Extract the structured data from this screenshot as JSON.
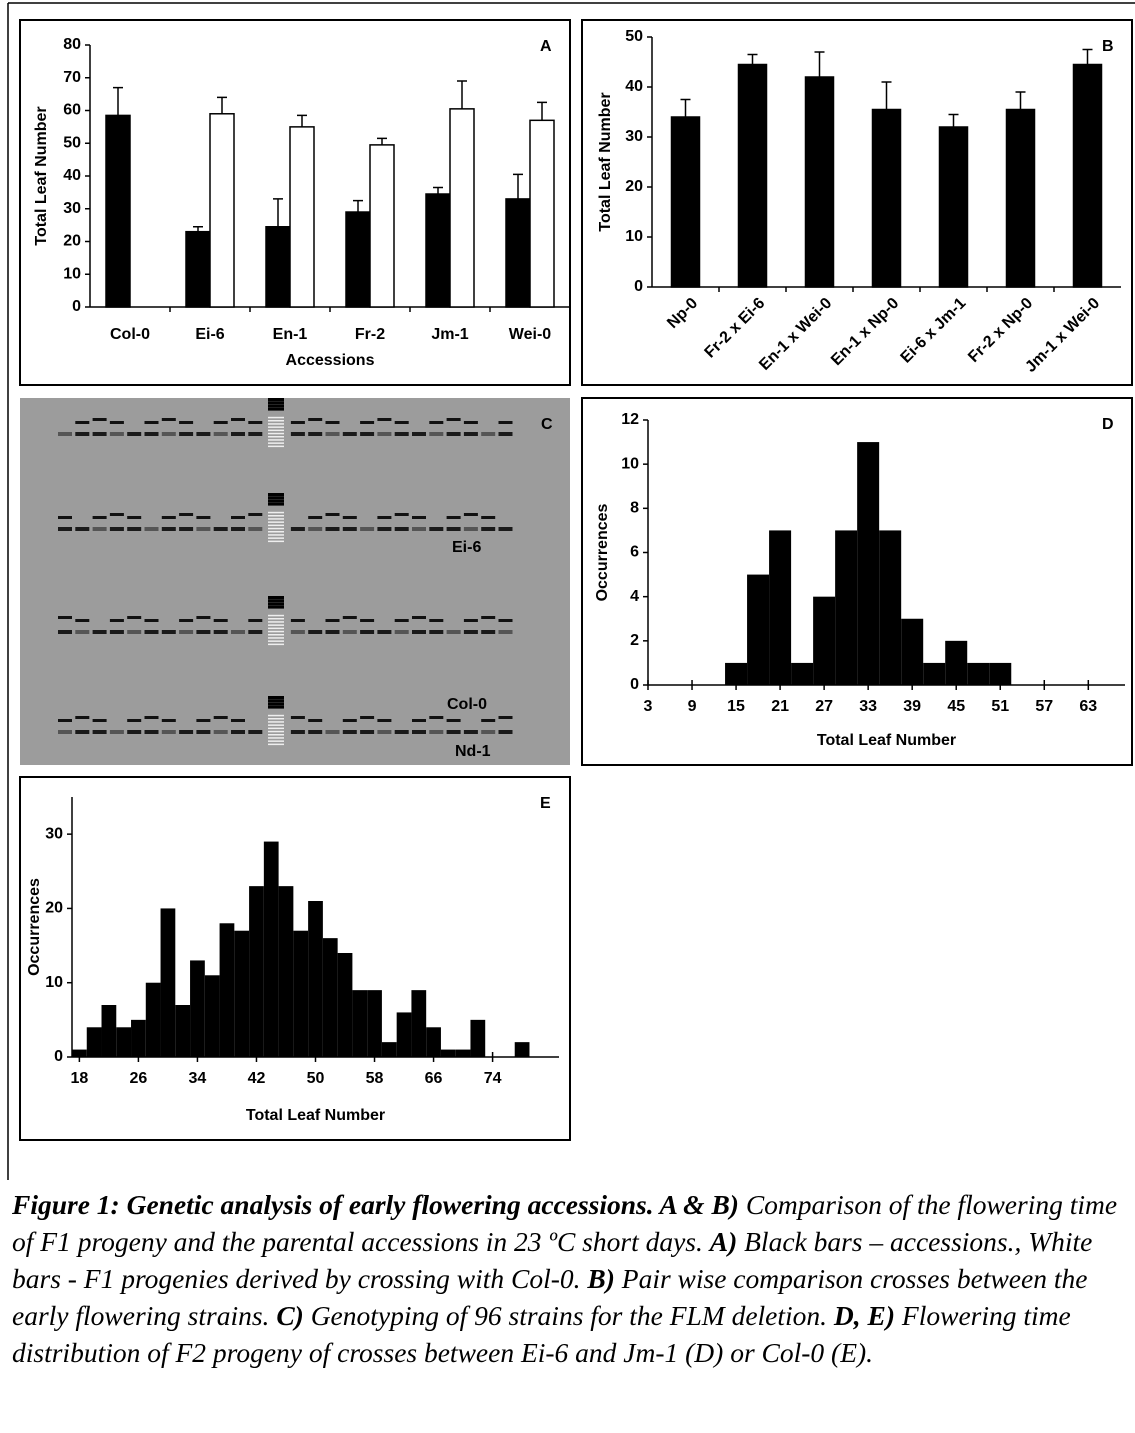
{
  "chart_data": [
    {
      "type": "bar",
      "panel": "A",
      "ylabel": "Total Leaf Number",
      "xlabel": "Accessions",
      "categories": [
        "Col-0",
        "Ei-6",
        "En-1",
        "Fr-2",
        "Jm-1",
        "Wei-0"
      ],
      "series": [
        {
          "color": "#000000",
          "values": [
            58.5,
            23,
            24.5,
            29,
            34.5,
            33
          ],
          "errors": [
            8.5,
            1.5,
            8.5,
            3.5,
            2,
            7.5
          ]
        },
        {
          "color": "#ffffff",
          "values": [
            null,
            59,
            55,
            49.5,
            60.5,
            57
          ],
          "errors": [
            null,
            5,
            3.5,
            2,
            8.5,
            5.5
          ]
        }
      ],
      "ylim": [
        0,
        80
      ],
      "yticks": [
        0,
        10,
        20,
        30,
        40,
        50,
        60,
        70,
        80
      ]
    },
    {
      "type": "bar",
      "panel": "B",
      "ylabel": "Total Leaf Number",
      "label_rotation": -45,
      "categories": [
        "Np-0",
        "Fr-2 x Ei-6",
        "En-1 x Wei-0",
        "En-1 x Np-0",
        "Ei-6 x Jm-1",
        "Fr-2 x Np-0",
        "Jm-1 x Wei-0"
      ],
      "series": [
        {
          "color": "#000000",
          "values": [
            34,
            44.5,
            42,
            35.5,
            32,
            35.5,
            44.5
          ],
          "errors": [
            3.5,
            2,
            5,
            5.5,
            2.5,
            3.5,
            3
          ]
        }
      ],
      "ylim": [
        0,
        50
      ],
      "yticks": [
        0,
        10,
        20,
        30,
        40,
        50
      ]
    },
    {
      "type": "histogram",
      "panel": "D",
      "ylabel": "Occurrences",
      "xlabel": "Total Leaf Number",
      "color": "#000000",
      "bins": [
        13.5,
        16.5,
        19.5,
        22.5,
        25.5,
        28.5,
        31.5,
        34.5,
        37.5,
        40.5,
        43.5,
        46.5,
        49.5,
        52.5
      ],
      "values": [
        1,
        5,
        7,
        1,
        4,
        7,
        11,
        7,
        3,
        1,
        2,
        1,
        1
      ],
      "xlim": [
        3,
        68
      ],
      "xticks": [
        3,
        9,
        15,
        21,
        27,
        33,
        39,
        45,
        51,
        57,
        63
      ],
      "ylim": [
        0,
        12
      ],
      "yticks": [
        0,
        2,
        4,
        6,
        8,
        10,
        12
      ]
    },
    {
      "type": "histogram",
      "panel": "E",
      "ylabel": "Occurrences",
      "xlabel": "Total Leaf Number",
      "color": "#000000",
      "bins": [
        17,
        19,
        21,
        23,
        25,
        27,
        29,
        31,
        33,
        35,
        37,
        39,
        41,
        43,
        45,
        47,
        49,
        51,
        53,
        55,
        57,
        59,
        61,
        63,
        65,
        67,
        69,
        71,
        73,
        75,
        77,
        79
      ],
      "values": [
        1,
        4,
        7,
        4,
        5,
        10,
        20,
        7,
        13,
        11,
        18,
        17,
        23,
        29,
        23,
        17,
        21,
        16,
        14,
        9,
        9,
        2,
        6,
        9,
        4,
        1,
        1,
        5,
        0,
        0,
        2
      ],
      "xlim": [
        17,
        83
      ],
      "xticks": [
        18,
        26,
        34,
        42,
        50,
        58,
        66,
        74
      ],
      "ylim": [
        0,
        35
      ],
      "yticks": [
        0,
        10,
        20,
        30
      ]
    }
  ],
  "gel": {
    "panel": "C",
    "labels": [
      "Ei-6",
      "Col-0",
      "Nd-1"
    ]
  },
  "caption": [
    "Figure 1: Genetic analysis of early flowering accessions. A & B)",
    " Comparison of the flowering time of F1 progeny and the parental accessions in 23 ºC short days. ",
    "A)",
    " Black bars – accessions., White bars - F1 progenies derived by crossing with Col-0.  ",
    "B)",
    " Pair wise comparison crosses between the early flowering strains. ",
    "C)",
    " Genotyping of 96 strains for the FLM deletion. ",
    "D, E)",
    " Flowering time distribution of F2 progeny of crosses between Ei-6 and Jm-1 (D) or Col-0 (E)."
  ]
}
